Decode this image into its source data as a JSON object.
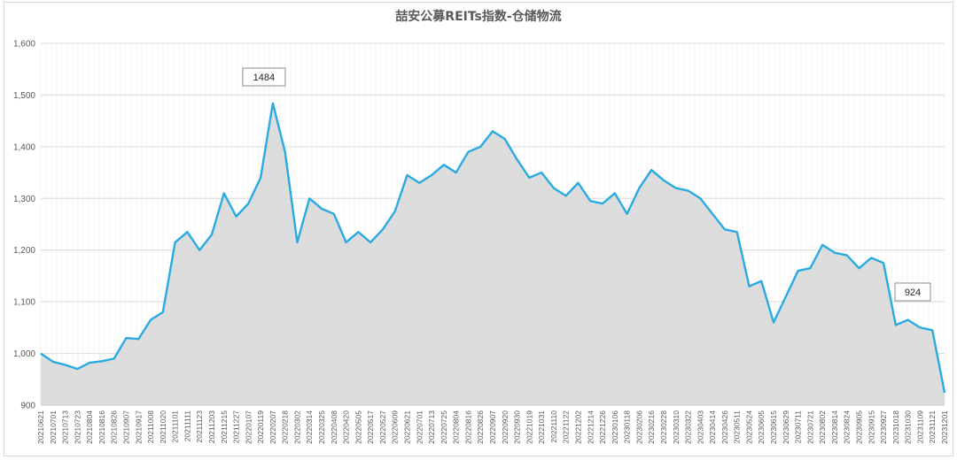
{
  "chart_data": {
    "type": "area",
    "title": "喆安公募REITs指数-仓储物流",
    "ylim": [
      900,
      1600
    ],
    "yticks": [
      "900",
      "1,000",
      "1,100",
      "1,200",
      "1,300",
      "1,400",
      "1,500",
      "1,600"
    ],
    "categories": [
      "20210621",
      "20210701",
      "20210713",
      "20210723",
      "20210804",
      "20210816",
      "20210826",
      "20210907",
      "20210917",
      "20211008",
      "20211020",
      "20211101",
      "20211111",
      "20211123",
      "20211203",
      "20211215",
      "20211227",
      "20220107",
      "20220119",
      "20220207",
      "20220218",
      "20220302",
      "20220314",
      "20220325",
      "20220408",
      "20220420",
      "20220505",
      "20220517",
      "20220527",
      "20220609",
      "20220621",
      "20220701",
      "20220713",
      "20220725",
      "20220804",
      "20220816",
      "20220826",
      "20220907",
      "20220920",
      "20220930",
      "20221019",
      "20221031",
      "20221110",
      "20221122",
      "20221202",
      "20221214",
      "20221226",
      "20230106",
      "20230118",
      "20230206",
      "20230216",
      "20230228",
      "20230310",
      "20230322",
      "20230403",
      "20230414",
      "20230426",
      "20230511",
      "20230524",
      "20230605",
      "20230615",
      "20230629",
      "20230711",
      "20230721",
      "20230802",
      "20230814",
      "20230824",
      "20230905",
      "20230915",
      "20230927",
      "20231018",
      "20231030",
      "20231109",
      "20231121",
      "20231201"
    ],
    "series": [
      {
        "values": [
          1000,
          984,
          978,
          970,
          982,
          985,
          990,
          1030,
          1028,
          1065,
          1080,
          1215,
          1235,
          1200,
          1230,
          1310,
          1265,
          1290,
          1340,
          1484,
          1390,
          1215,
          1300,
          1280,
          1270,
          1215,
          1235,
          1215,
          1240,
          1275,
          1345,
          1330,
          1345,
          1365,
          1350,
          1390,
          1400,
          1430,
          1415,
          1375,
          1340,
          1350,
          1320,
          1305,
          1330,
          1295,
          1290,
          1310,
          1270,
          1320,
          1355,
          1335,
          1320,
          1315,
          1300,
          1270,
          1240,
          1235,
          1130,
          1140,
          1060,
          1110,
          1160,
          1165,
          1210,
          1195,
          1190,
          1165,
          1185,
          1175,
          1055,
          1065,
          1050,
          1045,
          924
        ]
      }
    ],
    "annotations": [
      {
        "label": "1484",
        "category": "20220207",
        "value": 1484
      },
      {
        "label": "924",
        "category": "20231201",
        "value": 924
      }
    ],
    "colors": {
      "line": "#29abe2",
      "area": "#d9d9d9",
      "grid": "#d9d9d9",
      "axis_text": "#595959"
    },
    "grid": true
  }
}
